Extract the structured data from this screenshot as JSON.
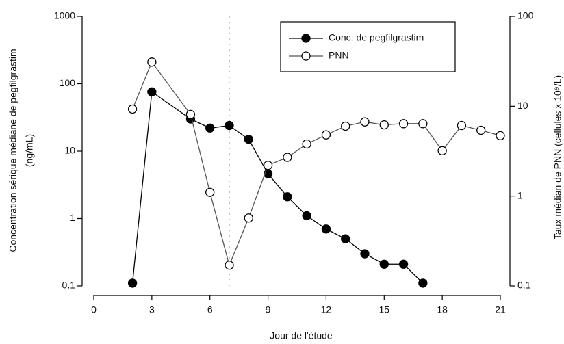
{
  "chart_data": {
    "type": "line",
    "x_label": "Jour de l'étude",
    "y_label": [
      "Concentration sérique médiane de pegfilgrastim",
      "(ng/mL)"
    ],
    "y2_label": "Taux médian de PNN (cellules x 10⁹/L)",
    "x": [
      2,
      3,
      5,
      6,
      7,
      8,
      9,
      10,
      11,
      12,
      13,
      14,
      15,
      16,
      17,
      18,
      19,
      20,
      21
    ],
    "series": [
      {
        "name": "Conc. de pegfilgrastim",
        "color": "#000000",
        "marker": "filled",
        "axis": "y",
        "values": [
          0.11,
          76,
          30,
          22,
          24,
          15,
          4.6,
          2.1,
          1.1,
          0.7,
          0.5,
          0.3,
          0.21,
          0.21,
          0.11,
          null,
          null,
          null,
          null
        ]
      },
      {
        "name": "PNN",
        "color": "#555555",
        "marker": "open",
        "axis": "y2",
        "values": [
          9.3,
          31,
          8.1,
          1.1,
          0.17,
          0.57,
          2.2,
          2.7,
          3.8,
          4.8,
          6.0,
          6.7,
          6.2,
          6.4,
          6.4,
          3.2,
          6.1,
          5.4,
          4.7
        ]
      }
    ],
    "xlim": [
      0,
      21
    ],
    "xticks": [
      0,
      3,
      6,
      9,
      12,
      15,
      18,
      21
    ],
    "ylim": [
      0.1,
      1000
    ],
    "yticks": [
      0.1,
      1,
      10,
      100,
      1000
    ],
    "y2lim": [
      0.1,
      100
    ],
    "y2ticks": [
      0.1,
      1,
      10,
      100
    ],
    "log_scale": true,
    "reference_line_x": 7,
    "legend": "top-right"
  }
}
